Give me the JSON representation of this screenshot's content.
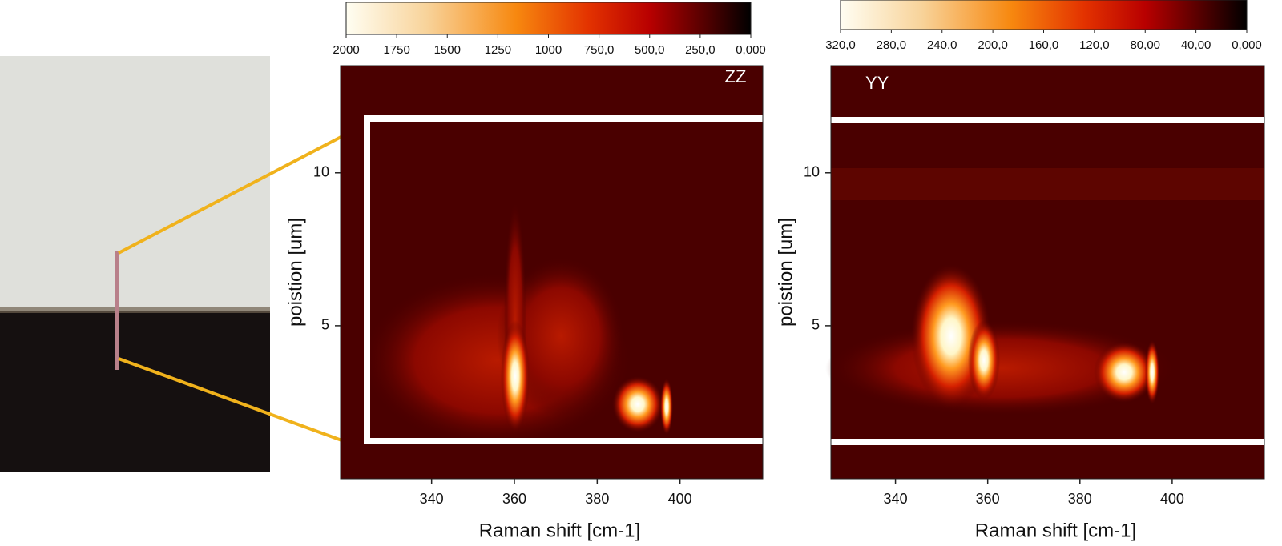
{
  "chart_data": [
    {
      "type": "heatmap",
      "annotation": "ZZ",
      "xlabel": "Raman shift [cm-1]",
      "ylabel": "poistion [um]",
      "xlim": [
        318,
        420
      ],
      "xticks": [
        340,
        360,
        380,
        400
      ],
      "ylim": [
        0,
        13.5
      ],
      "yticks": [
        5,
        10
      ],
      "colorbar": {
        "lim": [
          2000,
          0
        ],
        "ticks": [
          2000,
          1750,
          1500,
          1250,
          1000,
          {
            "value": 750,
            "label": "750,0"
          },
          {
            "value": 500,
            "label": "500,0"
          },
          {
            "value": 250,
            "label": "250,0"
          },
          {
            "value": 0,
            "label": "0,000"
          }
        ]
      }
    },
    {
      "type": "heatmap",
      "annotation": "YY",
      "xlabel": "Raman shift [cm-1]",
      "ylabel": "poistion [um]",
      "xlim": [
        326,
        420
      ],
      "xticks": [
        340,
        360,
        380,
        400
      ],
      "ylim": [
        0,
        13.5
      ],
      "yticks": [
        5,
        10
      ],
      "colorbar": {
        "lim": [
          320,
          0
        ],
        "ticks": [
          {
            "value": 320,
            "label": "320,0"
          },
          {
            "value": 280,
            "label": "280,0"
          },
          {
            "value": 240,
            "label": "240,0"
          },
          {
            "value": 200,
            "label": "200,0"
          },
          {
            "value": 160,
            "label": "160,0"
          },
          {
            "value": 120,
            "label": "120,0"
          },
          {
            "value": 80,
            "label": "80,00"
          },
          {
            "value": 40,
            "label": "40,00"
          },
          {
            "value": 0,
            "label": "0,000"
          }
        ]
      }
    }
  ]
}
